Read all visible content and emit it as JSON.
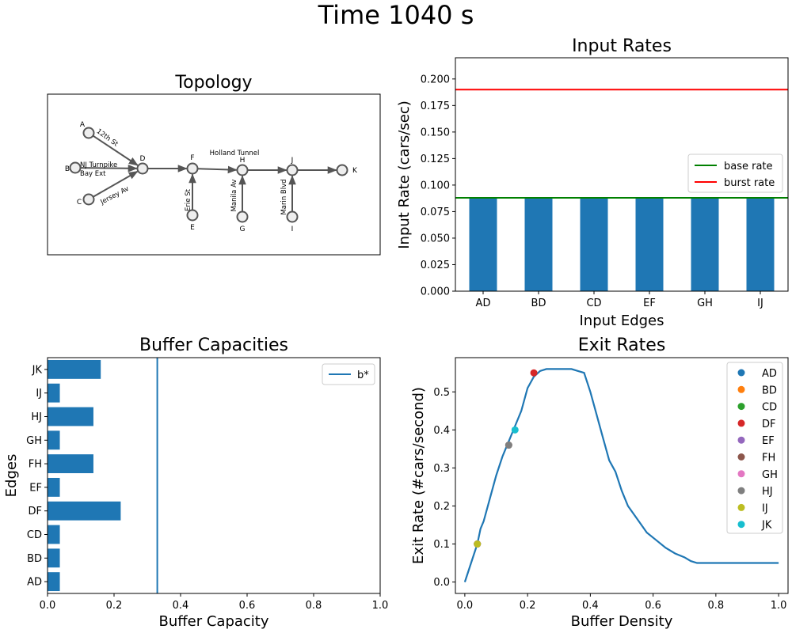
{
  "figure": {
    "title": "Time 1040 s"
  },
  "chart_data": [
    {
      "id": "topology",
      "type": "diagram",
      "title": "Topology",
      "nodes": [
        "A",
        "B",
        "C",
        "D",
        "E",
        "F",
        "G",
        "H",
        "I",
        "J",
        "K"
      ],
      "edges": [
        {
          "from": "A",
          "to": "D",
          "label": "12th St"
        },
        {
          "from": "B",
          "to": "D",
          "label": "NJ Turnpike Bay Ext"
        },
        {
          "from": "C",
          "to": "D",
          "label": "Jersey Av"
        },
        {
          "from": "D",
          "to": "F",
          "label": ""
        },
        {
          "from": "E",
          "to": "F",
          "label": "Erie St"
        },
        {
          "from": "F",
          "to": "H",
          "label": ""
        },
        {
          "from": "G",
          "to": "H",
          "label": "Manila Av"
        },
        {
          "from": "H",
          "to": "J",
          "label": "Holland Tunnel"
        },
        {
          "from": "I",
          "to": "J",
          "label": "Marin Blvd"
        },
        {
          "from": "J",
          "to": "K",
          "label": ""
        }
      ]
    },
    {
      "id": "input_rates",
      "type": "bar",
      "title": "Input Rates",
      "xlabel": "Input Edges",
      "ylabel": "Input Rate (cars/sec)",
      "categories": [
        "AD",
        "BD",
        "CD",
        "EF",
        "GH",
        "IJ"
      ],
      "values": [
        0.088,
        0.088,
        0.088,
        0.088,
        0.088,
        0.088
      ],
      "ylim": [
        0,
        0.22
      ],
      "yticks": [
        "0.000",
        "0.025",
        "0.050",
        "0.075",
        "0.100",
        "0.125",
        "0.150",
        "0.175",
        "0.200"
      ],
      "hlines": [
        {
          "name": "base rate",
          "value": 0.088,
          "color": "#008000"
        },
        {
          "name": "burst rate",
          "value": 0.19,
          "color": "#ff0000"
        }
      ],
      "bar_color": "#1f77b4",
      "legend": "center-right"
    },
    {
      "id": "buffer_capacities",
      "type": "barh",
      "title": "Buffer Capacities",
      "xlabel": "Buffer Capacity",
      "ylabel": "Edges",
      "categories": [
        "AD",
        "BD",
        "CD",
        "DF",
        "EF",
        "FH",
        "GH",
        "HJ",
        "IJ",
        "JK"
      ],
      "values": [
        0.037,
        0.037,
        0.037,
        0.22,
        0.037,
        0.138,
        0.037,
        0.138,
        0.037,
        0.16
      ],
      "xlim": [
        0,
        1.0
      ],
      "xticks": [
        "0.0",
        "0.2",
        "0.4",
        "0.6",
        "0.8",
        "1.0"
      ],
      "vlines": [
        {
          "name": "b*",
          "value": 0.33,
          "color": "#1f77b4"
        }
      ],
      "bar_color": "#1f77b4",
      "legend": "top-right"
    },
    {
      "id": "exit_rates",
      "type": "line",
      "title": "Exit Rates",
      "xlabel": "Buffer Density",
      "ylabel": "Exit Rate (#cars/second)",
      "xlim": [
        -0.03,
        1.03
      ],
      "ylim": [
        -0.03,
        0.59
      ],
      "xticks": [
        "0.0",
        "0.2",
        "0.4",
        "0.6",
        "0.8",
        "1.0"
      ],
      "yticks": [
        "0.0",
        "0.1",
        "0.2",
        "0.3",
        "0.4",
        "0.5"
      ],
      "line_color": "#1f77b4",
      "curve_x": [
        0,
        0.02,
        0.04,
        0.05,
        0.06,
        0.08,
        0.1,
        0.12,
        0.14,
        0.16,
        0.18,
        0.2,
        0.22,
        0.24,
        0.26,
        0.3,
        0.34,
        0.36,
        0.38,
        0.4,
        0.42,
        0.44,
        0.46,
        0.48,
        0.5,
        0.52,
        0.55,
        0.58,
        0.61,
        0.64,
        0.67,
        0.7,
        0.72,
        0.74,
        0.8,
        0.9,
        1.0
      ],
      "curve_y": [
        0,
        0.05,
        0.1,
        0.14,
        0.16,
        0.22,
        0.28,
        0.33,
        0.37,
        0.41,
        0.45,
        0.51,
        0.54,
        0.555,
        0.56,
        0.56,
        0.56,
        0.555,
        0.55,
        0.5,
        0.44,
        0.38,
        0.32,
        0.29,
        0.24,
        0.2,
        0.165,
        0.13,
        0.11,
        0.09,
        0.075,
        0.065,
        0.055,
        0.05,
        0.05,
        0.05,
        0.05
      ],
      "points": [
        {
          "name": "AD",
          "x": 0.04,
          "y": 0.1,
          "color": "#1f77b4"
        },
        {
          "name": "BD",
          "x": 0.04,
          "y": 0.1,
          "color": "#ff7f0e"
        },
        {
          "name": "CD",
          "x": 0.04,
          "y": 0.1,
          "color": "#2ca02c"
        },
        {
          "name": "DF",
          "x": 0.22,
          "y": 0.55,
          "color": "#d62728"
        },
        {
          "name": "EF",
          "x": 0.04,
          "y": 0.1,
          "color": "#9467bd"
        },
        {
          "name": "FH",
          "x": 0.14,
          "y": 0.36,
          "color": "#8c564b"
        },
        {
          "name": "GH",
          "x": 0.04,
          "y": 0.1,
          "color": "#e377c2"
        },
        {
          "name": "HJ",
          "x": 0.14,
          "y": 0.36,
          "color": "#7f7f7f"
        },
        {
          "name": "IJ",
          "x": 0.04,
          "y": 0.1,
          "color": "#bcbd22"
        },
        {
          "name": "JK",
          "x": 0.16,
          "y": 0.4,
          "color": "#17becf"
        }
      ],
      "legend": "top-right"
    }
  ]
}
